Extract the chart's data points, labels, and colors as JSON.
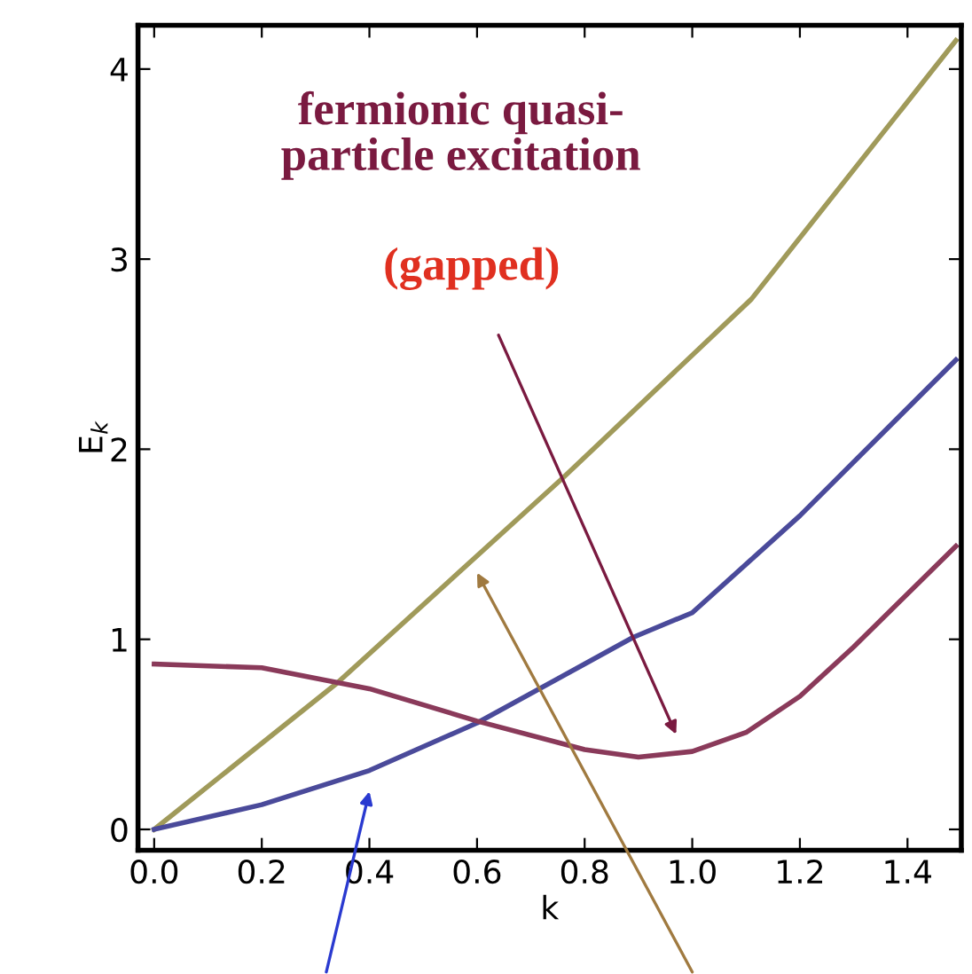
{
  "chart_data": {
    "type": "line",
    "xlabel": "k",
    "ylabel": "E$_{k}$",
    "xlim": [
      -0.03,
      1.5
    ],
    "ylim": [
      -0.11,
      4.23
    ],
    "xticks": [
      {
        "value": 0,
        "label": "0.0"
      },
      {
        "value": 0.2,
        "label": "0.2"
      },
      {
        "value": 0.4,
        "label": "0.4"
      },
      {
        "value": 0.6,
        "label": "0.6"
      },
      {
        "value": 0.8,
        "label": "0.8"
      },
      {
        "value": 1.0,
        "label": "1.0"
      },
      {
        "value": 1.2,
        "label": "1.2"
      },
      {
        "value": 1.4,
        "label": "1.4"
      }
    ],
    "yticks": [
      0,
      1,
      2,
      3,
      4
    ],
    "grid": false,
    "legend": false,
    "marker": "none",
    "line_style": "solid",
    "series": [
      {
        "color": "#a09a5a",
        "x": [
          0,
          0.34,
          0.76,
          1.11,
          1.49
        ],
        "values": [
          0,
          0.77,
          1.85,
          2.79,
          4.15
        ]
      },
      {
        "color": "#4a4a9a",
        "x": [
          0,
          0.2,
          0.4,
          0.6,
          0.8,
          0.89,
          1.0,
          1.2,
          1.49
        ],
        "values": [
          0,
          0.13,
          0.31,
          0.56,
          0.87,
          1.01,
          1.14,
          1.65,
          2.47
        ]
      },
      {
        "color": "#8a3a5a",
        "x": [
          0,
          0.2,
          0.4,
          0.6,
          0.8,
          0.9,
          1.0,
          1.1,
          1.2,
          1.3,
          1.49
        ],
        "values": [
          0.87,
          0.85,
          0.74,
          0.57,
          0.42,
          0.38,
          0.41,
          0.51,
          0.7,
          0.96,
          1.49
        ]
      }
    ],
    "annotations": [
      "fermionic quasi-\nparticle excitation",
      "(gapped)"
    ]
  }
}
